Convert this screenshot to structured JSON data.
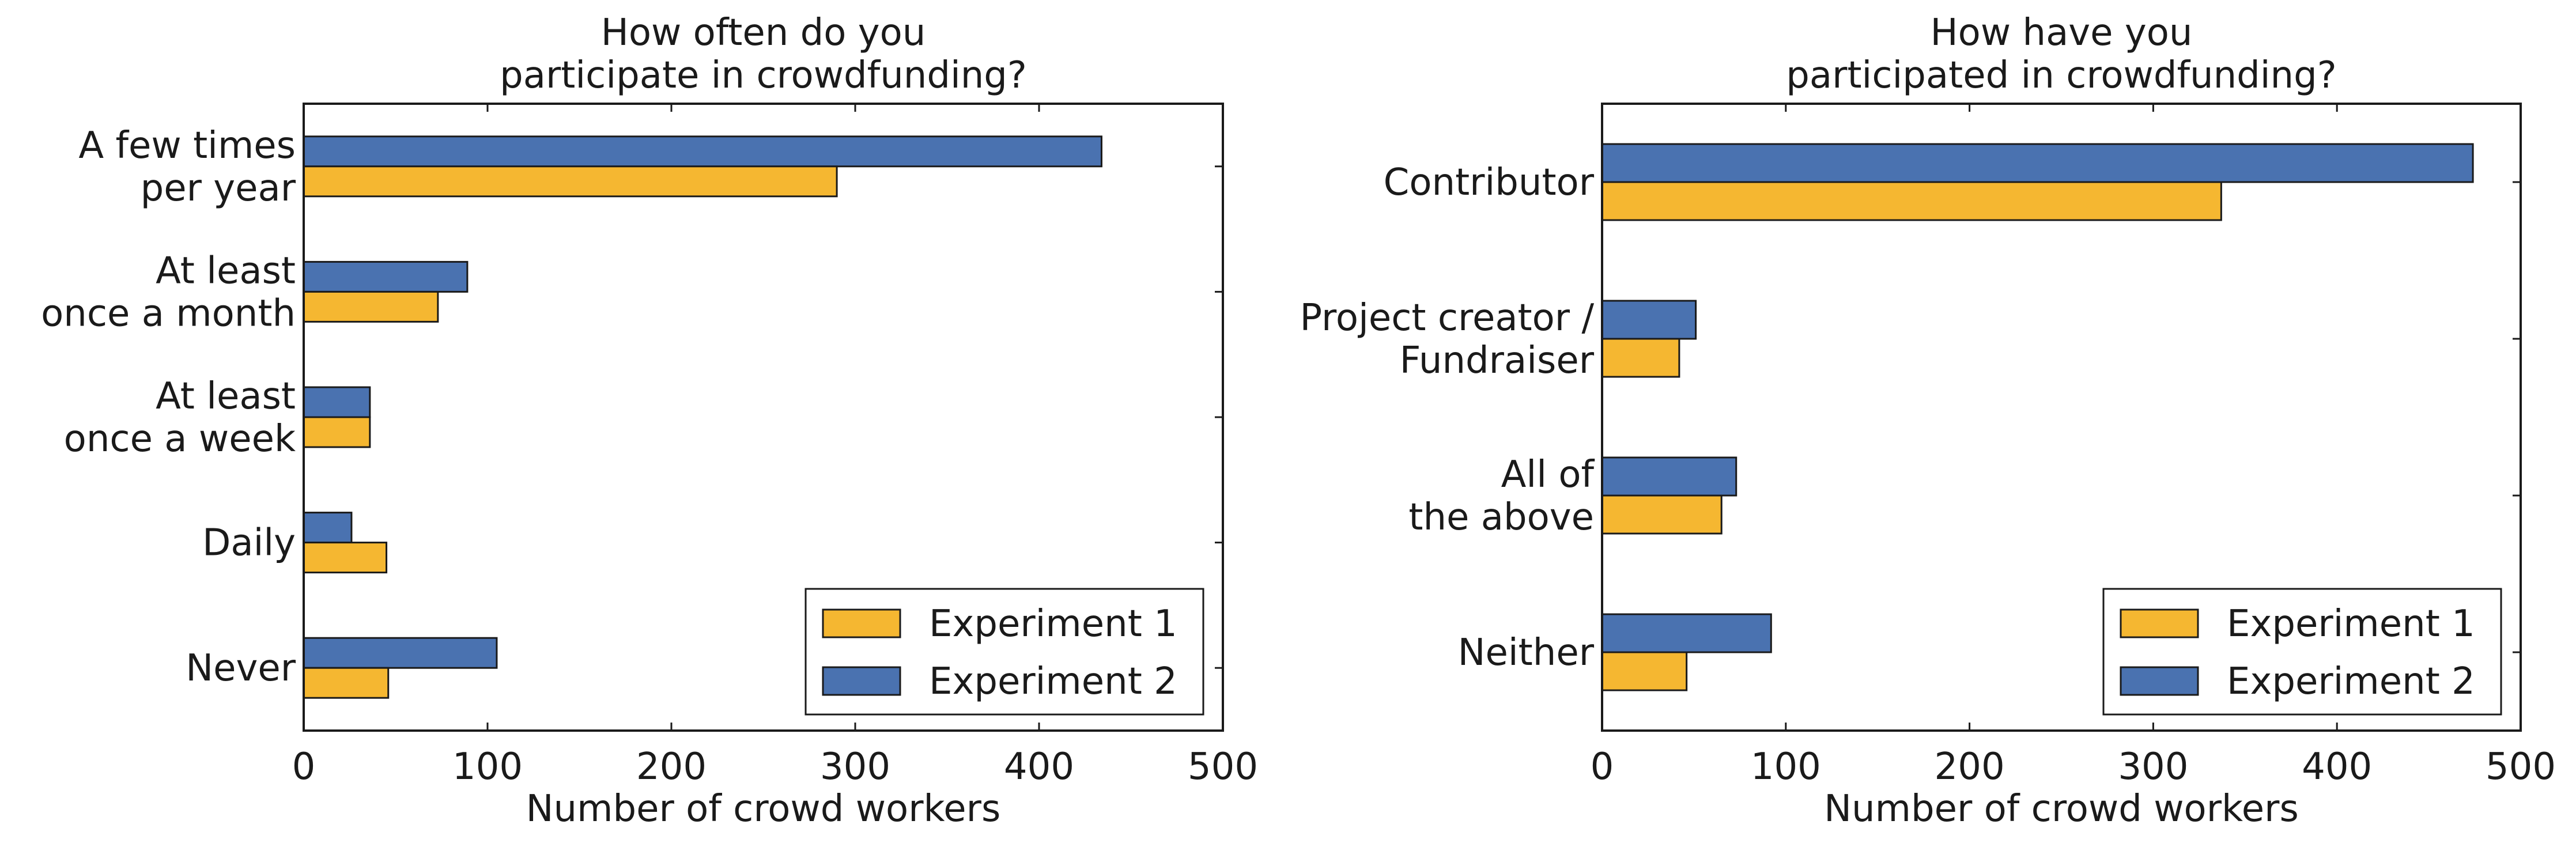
{
  "colors": {
    "experiment_1": "#F5B731",
    "experiment_2": "#4A72B0",
    "edge": "#1a1a1a"
  },
  "chart_data": [
    {
      "type": "bar",
      "orientation": "horizontal",
      "title": [
        "How often do you",
        "participate in crowdfunding?"
      ],
      "xlabel": "Number of crowd workers",
      "ylabel": "",
      "xlim": [
        0,
        500
      ],
      "xticks": [
        "0",
        "100",
        "200",
        "300",
        "400",
        "500"
      ],
      "categories": [
        [
          "A few times",
          "per year"
        ],
        [
          "At least",
          "once a month"
        ],
        [
          "At least",
          "once a week"
        ],
        [
          "Daily"
        ],
        [
          "Never"
        ]
      ],
      "series": [
        {
          "name": "Experiment 1",
          "values": [
            290,
            73,
            36,
            45,
            46
          ]
        },
        {
          "name": "Experiment 2",
          "values": [
            434,
            89,
            36,
            26,
            105
          ]
        }
      ],
      "legend": {
        "position": "lower-right",
        "entries": [
          "Experiment 1",
          "Experiment 2"
        ]
      },
      "grid": false
    },
    {
      "type": "bar",
      "orientation": "horizontal",
      "title": [
        "How have you",
        "participated in crowdfunding?"
      ],
      "xlabel": "Number of crowd workers",
      "ylabel": "",
      "xlim": [
        0,
        500
      ],
      "xticks": [
        "0",
        "100",
        "200",
        "300",
        "400",
        "500"
      ],
      "categories": [
        [
          "Contributor"
        ],
        [
          "Project creator /",
          "Fundraiser"
        ],
        [
          "All of",
          "the above"
        ],
        [
          "Neither"
        ]
      ],
      "series": [
        {
          "name": "Experiment 1",
          "values": [
            337,
            42,
            65,
            46
          ]
        },
        {
          "name": "Experiment 2",
          "values": [
            474,
            51,
            73,
            92
          ]
        }
      ],
      "legend": {
        "position": "lower-right",
        "entries": [
          "Experiment 1",
          "Experiment 2"
        ]
      },
      "grid": false
    }
  ]
}
